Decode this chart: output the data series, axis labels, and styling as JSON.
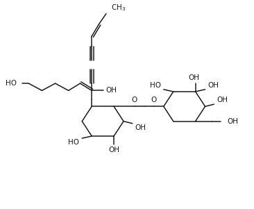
{
  "bg_color": "#ffffff",
  "line_color": "#1a1a1a",
  "figsize": [
    3.66,
    3.01
  ],
  "dpi": 100,
  "xlim": [
    0,
    9.15
  ],
  "ylim": [
    0,
    7.525
  ]
}
